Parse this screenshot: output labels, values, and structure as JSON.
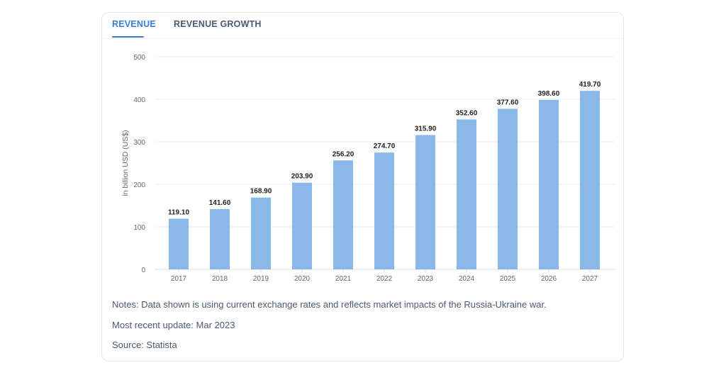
{
  "tabs": [
    {
      "label": "REVENUE",
      "active": true
    },
    {
      "label": "REVENUE GROWTH",
      "active": false
    }
  ],
  "chart_data": {
    "type": "bar",
    "categories": [
      "2017",
      "2018",
      "2019",
      "2020",
      "2021",
      "2022",
      "2023",
      "2024",
      "2025",
      "2026",
      "2027"
    ],
    "values": [
      119.1,
      141.6,
      168.9,
      203.9,
      256.2,
      274.7,
      315.9,
      352.6,
      377.6,
      398.6,
      419.7
    ],
    "data_labels": [
      "119.10",
      "141.60",
      "168.90",
      "203.90",
      "256.20",
      "274.70",
      "315.90",
      "352.60",
      "377.60",
      "398.60",
      "419.70"
    ],
    "ylabel": "in billion USD (US$)",
    "ylim": [
      0,
      500
    ],
    "yticks": [
      "0",
      "100",
      "200",
      "300",
      "400",
      "500"
    ],
    "grid": true,
    "bar_color": "#8ab8e8"
  },
  "notes": {
    "note": "Notes: Data shown is using current exchange rates and reflects market impacts of the Russia-Ukraine war.",
    "update": "Most recent update: Mar 2023",
    "source": "Source: Statista"
  },
  "colors": {
    "accent": "#3a7bd5",
    "text": "#4a5a72"
  }
}
